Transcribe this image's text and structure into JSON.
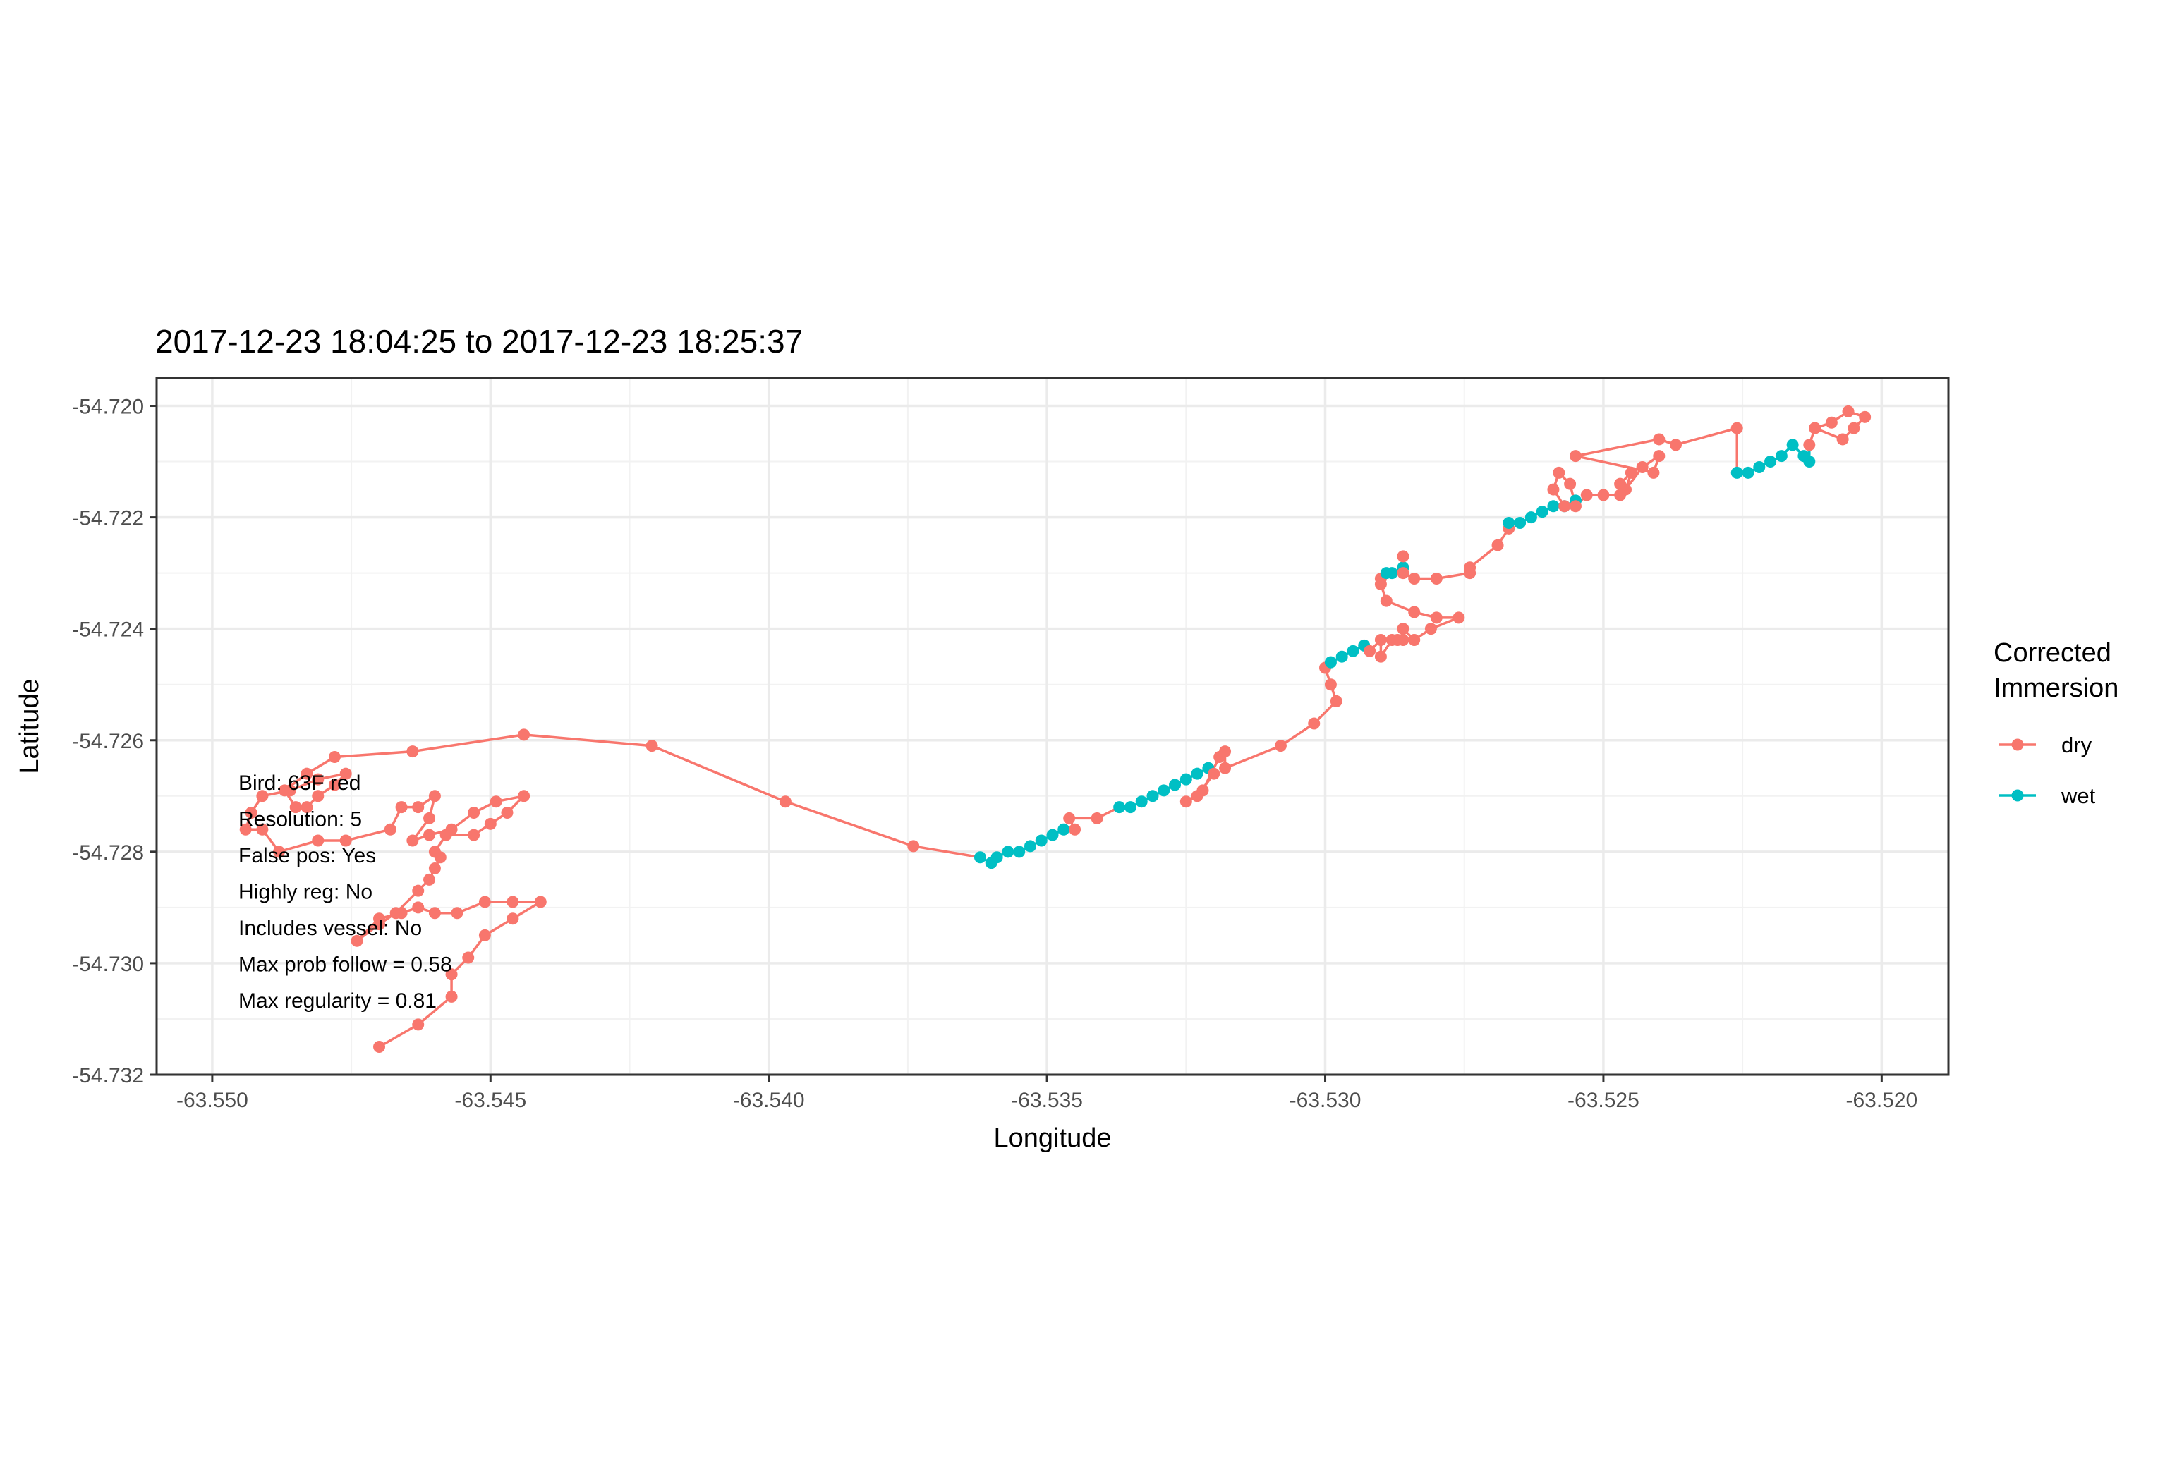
{
  "chart_data": {
    "type": "line",
    "title": "2017-12-23 18:04:25 to 2017-12-23 18:25:37",
    "xlabel": "Longitude",
    "ylabel": "Latitude",
    "xlim": [
      -63.551,
      -63.5188
    ],
    "ylim": [
      -54.732,
      -54.7195
    ],
    "xticks": [
      -63.55,
      -63.545,
      -63.54,
      -63.535,
      -63.53,
      -63.525,
      -63.52
    ],
    "xtick_labels": [
      "-63.550",
      "-63.545",
      "-63.540",
      "-63.535",
      "-63.530",
      "-63.525",
      "-63.520"
    ],
    "yticks": [
      -54.72,
      -54.722,
      -54.724,
      -54.726,
      -54.728,
      -54.73,
      -54.732
    ],
    "ytick_labels": [
      "-54.720",
      "-54.722",
      "-54.724",
      "-54.726",
      "-54.728",
      "-54.730",
      "-54.732"
    ],
    "grid": true,
    "legend": {
      "title_lines": [
        "Corrected",
        "Immersion"
      ],
      "position": "right",
      "entries": [
        {
          "label": "dry",
          "color": "#F8766D"
        },
        {
          "label": "wet",
          "color": "#00BFC4"
        }
      ]
    },
    "annotation_lines": [
      "Bird: 63F red",
      "Resolution: 5",
      "False pos: Yes",
      "Highly reg: No",
      "Includes vessel: No",
      "Max prob follow = 0.58",
      "Max regularity = 0.81"
    ],
    "track": [
      [
        -63.547,
        -54.7315,
        "dry"
      ],
      [
        -63.5463,
        -54.7311,
        "dry"
      ],
      [
        -63.5457,
        -54.7306,
        "dry"
      ],
      [
        -63.5457,
        -54.7302,
        "dry"
      ],
      [
        -63.5454,
        -54.7299,
        "dry"
      ],
      [
        -63.5451,
        -54.7295,
        "dry"
      ],
      [
        -63.5446,
        -54.7292,
        "dry"
      ],
      [
        -63.5441,
        -54.7289,
        "dry"
      ],
      [
        -63.5446,
        -54.7289,
        "dry"
      ],
      [
        -63.5451,
        -54.7289,
        "dry"
      ],
      [
        -63.5456,
        -54.7291,
        "dry"
      ],
      [
        -63.546,
        -54.7291,
        "dry"
      ],
      [
        -63.5463,
        -54.729,
        "dry"
      ],
      [
        -63.5466,
        -54.7291,
        "dry"
      ],
      [
        -63.547,
        -54.7292,
        "dry"
      ],
      [
        -63.5474,
        -54.7296,
        "dry"
      ],
      [
        -63.547,
        -54.7293,
        "dry"
      ],
      [
        -63.5467,
        -54.7291,
        "dry"
      ],
      [
        -63.5463,
        -54.7287,
        "dry"
      ],
      [
        -63.5461,
        -54.7285,
        "dry"
      ],
      [
        -63.546,
        -54.7283,
        "dry"
      ],
      [
        -63.5459,
        -54.7281,
        "dry"
      ],
      [
        -63.546,
        -54.728,
        "dry"
      ],
      [
        -63.5458,
        -54.7277,
        "dry"
      ],
      [
        -63.5453,
        -54.7277,
        "dry"
      ],
      [
        -63.545,
        -54.7275,
        "dry"
      ],
      [
        -63.5447,
        -54.7273,
        "dry"
      ],
      [
        -63.5444,
        -54.727,
        "dry"
      ],
      [
        -63.5449,
        -54.7271,
        "dry"
      ],
      [
        -63.5453,
        -54.7273,
        "dry"
      ],
      [
        -63.5457,
        -54.7276,
        "dry"
      ],
      [
        -63.5461,
        -54.7277,
        "dry"
      ],
      [
        -63.5464,
        -54.7278,
        "dry"
      ],
      [
        -63.5461,
        -54.7274,
        "dry"
      ],
      [
        -63.546,
        -54.727,
        "dry"
      ],
      [
        -63.5463,
        -54.7272,
        "dry"
      ],
      [
        -63.5466,
        -54.7272,
        "dry"
      ],
      [
        -63.5468,
        -54.7276,
        "dry"
      ],
      [
        -63.5476,
        -54.7278,
        "dry"
      ],
      [
        -63.5481,
        -54.7278,
        "dry"
      ],
      [
        -63.5488,
        -54.728,
        "dry"
      ],
      [
        -63.5491,
        -54.7276,
        "dry"
      ],
      [
        -63.5494,
        -54.7276,
        "dry"
      ],
      [
        -63.5493,
        -54.7273,
        "dry"
      ],
      [
        -63.5491,
        -54.727,
        "dry"
      ],
      [
        -63.5486,
        -54.7269,
        "dry"
      ],
      [
        -63.5481,
        -54.7267,
        "dry"
      ],
      [
        -63.5476,
        -54.7266,
        "dry"
      ],
      [
        -63.5478,
        -54.7268,
        "dry"
      ],
      [
        -63.5481,
        -54.727,
        "dry"
      ],
      [
        -63.5483,
        -54.7272,
        "dry"
      ],
      [
        -63.5485,
        -54.7272,
        "dry"
      ],
      [
        -63.5487,
        -54.7269,
        "dry"
      ],
      [
        -63.5483,
        -54.7266,
        "dry"
      ],
      [
        -63.5478,
        -54.7263,
        "dry"
      ],
      [
        -63.5464,
        -54.7262,
        "dry"
      ],
      [
        -63.5444,
        -54.7259,
        "dry"
      ],
      [
        -63.5421,
        -54.7261,
        "dry"
      ],
      [
        -63.5397,
        -54.7271,
        "dry"
      ],
      [
        -63.5374,
        -54.7279,
        "dry"
      ],
      [
        -63.5362,
        -54.7281,
        "wet"
      ],
      [
        -63.536,
        -54.7282,
        "wet"
      ],
      [
        -63.5359,
        -54.7281,
        "wet"
      ],
      [
        -63.5357,
        -54.728,
        "wet"
      ],
      [
        -63.5355,
        -54.728,
        "wet"
      ],
      [
        -63.5353,
        -54.7279,
        "wet"
      ],
      [
        -63.5351,
        -54.7278,
        "wet"
      ],
      [
        -63.5349,
        -54.7277,
        "wet"
      ],
      [
        -63.5347,
        -54.7276,
        "wet"
      ],
      [
        -63.5345,
        -54.7276,
        "dry"
      ],
      [
        -63.5346,
        -54.7274,
        "dry"
      ],
      [
        -63.5341,
        -54.7274,
        "dry"
      ],
      [
        -63.5337,
        -54.7272,
        "wet"
      ],
      [
        -63.5335,
        -54.7272,
        "wet"
      ],
      [
        -63.5333,
        -54.7271,
        "wet"
      ],
      [
        -63.5331,
        -54.727,
        "wet"
      ],
      [
        -63.5329,
        -54.7269,
        "wet"
      ],
      [
        -63.5327,
        -54.7268,
        "wet"
      ],
      [
        -63.5325,
        -54.7267,
        "wet"
      ],
      [
        -63.5323,
        -54.7266,
        "wet"
      ],
      [
        -63.5321,
        -54.7265,
        "wet"
      ],
      [
        -63.532,
        -54.7266,
        "dry"
      ],
      [
        -63.5323,
        -54.727,
        "dry"
      ],
      [
        -63.5325,
        -54.7271,
        "dry"
      ],
      [
        -63.5322,
        -54.7269,
        "dry"
      ],
      [
        -63.5319,
        -54.7263,
        "dry"
      ],
      [
        -63.5318,
        -54.7262,
        "dry"
      ],
      [
        -63.5318,
        -54.7265,
        "dry"
      ],
      [
        -63.5308,
        -54.7261,
        "dry"
      ],
      [
        -63.5302,
        -54.7257,
        "dry"
      ],
      [
        -63.5298,
        -54.7253,
        "dry"
      ],
      [
        -63.5299,
        -54.725,
        "dry"
      ],
      [
        -63.53,
        -54.7247,
        "dry"
      ],
      [
        -63.5299,
        -54.7246,
        "wet"
      ],
      [
        -63.5297,
        -54.7245,
        "wet"
      ],
      [
        -63.5295,
        -54.7244,
        "wet"
      ],
      [
        -63.5293,
        -54.7243,
        "wet"
      ],
      [
        -63.5292,
        -54.7244,
        "dry"
      ],
      [
        -63.529,
        -54.7242,
        "dry"
      ],
      [
        -63.529,
        -54.7245,
        "dry"
      ],
      [
        -63.5288,
        -54.7242,
        "dry"
      ],
      [
        -63.5287,
        -54.7242,
        "dry"
      ],
      [
        -63.5286,
        -54.7242,
        "dry"
      ],
      [
        -63.5286,
        -54.724,
        "dry"
      ],
      [
        -63.5284,
        -54.7242,
        "dry"
      ],
      [
        -63.5281,
        -54.724,
        "dry"
      ],
      [
        -63.5276,
        -54.7238,
        "dry"
      ],
      [
        -63.528,
        -54.7238,
        "dry"
      ],
      [
        -63.5284,
        -54.7237,
        "dry"
      ],
      [
        -63.5289,
        -54.7235,
        "dry"
      ],
      [
        -63.529,
        -54.7232,
        "dry"
      ],
      [
        -63.529,
        -54.7231,
        "dry"
      ],
      [
        -63.5289,
        -54.723,
        "wet"
      ],
      [
        -63.5288,
        -54.723,
        "wet"
      ],
      [
        -63.5286,
        -54.7229,
        "wet"
      ],
      [
        -63.5286,
        -54.7227,
        "dry"
      ],
      [
        -63.5286,
        -54.723,
        "dry"
      ],
      [
        -63.5284,
        -54.7231,
        "dry"
      ],
      [
        -63.528,
        -54.7231,
        "dry"
      ],
      [
        -63.5274,
        -54.723,
        "dry"
      ],
      [
        -63.5274,
        -54.7229,
        "dry"
      ],
      [
        -63.5269,
        -54.7225,
        "dry"
      ],
      [
        -63.5267,
        -54.7222,
        "dry"
      ],
      [
        -63.5267,
        -54.7221,
        "wet"
      ],
      [
        -63.5265,
        -54.7221,
        "wet"
      ],
      [
        -63.5263,
        -54.722,
        "wet"
      ],
      [
        -63.5261,
        -54.7219,
        "wet"
      ],
      [
        -63.5259,
        -54.7218,
        "wet"
      ],
      [
        -63.5257,
        -54.7218,
        "wet"
      ],
      [
        -63.5255,
        -54.7217,
        "wet"
      ],
      [
        -63.5257,
        -54.7218,
        "dry"
      ],
      [
        -63.5259,
        -54.7215,
        "dry"
      ],
      [
        -63.5258,
        -54.7212,
        "dry"
      ],
      [
        -63.5256,
        -54.7214,
        "dry"
      ],
      [
        -63.5255,
        -54.7218,
        "dry"
      ],
      [
        -63.5253,
        -54.7216,
        "dry"
      ],
      [
        -63.525,
        -54.7216,
        "dry"
      ],
      [
        -63.5247,
        -54.7216,
        "dry"
      ],
      [
        -63.5247,
        -54.7214,
        "dry"
      ],
      [
        -63.5245,
        -54.7212,
        "dry"
      ],
      [
        -63.5246,
        -54.7215,
        "dry"
      ],
      [
        -63.5243,
        -54.7211,
        "dry"
      ],
      [
        -63.524,
        -54.7209,
        "dry"
      ],
      [
        -63.5241,
        -54.7212,
        "dry"
      ],
      [
        -63.5255,
        -54.7209,
        "dry"
      ],
      [
        -63.524,
        -54.7206,
        "dry"
      ],
      [
        -63.5237,
        -54.7207,
        "dry"
      ],
      [
        -63.5226,
        -54.7204,
        "dry"
      ],
      [
        -63.5226,
        -54.7212,
        "wet"
      ],
      [
        -63.5224,
        -54.7212,
        "wet"
      ],
      [
        -63.5222,
        -54.7211,
        "wet"
      ],
      [
        -63.522,
        -54.721,
        "wet"
      ],
      [
        -63.5218,
        -54.7209,
        "wet"
      ],
      [
        -63.5216,
        -54.7207,
        "wet"
      ],
      [
        -63.5214,
        -54.7209,
        "wet"
      ],
      [
        -63.5213,
        -54.721,
        "wet"
      ],
      [
        -63.5213,
        -54.7207,
        "dry"
      ],
      [
        -63.5212,
        -54.7204,
        "dry"
      ],
      [
        -63.5207,
        -54.7206,
        "dry"
      ],
      [
        -63.5205,
        -54.7204,
        "dry"
      ],
      [
        -63.5203,
        -54.7202,
        "dry"
      ],
      [
        -63.5206,
        -54.7201,
        "dry"
      ],
      [
        -63.5209,
        -54.7203,
        "dry"
      ],
      [
        -63.5212,
        -54.7204,
        "dry"
      ]
    ]
  }
}
